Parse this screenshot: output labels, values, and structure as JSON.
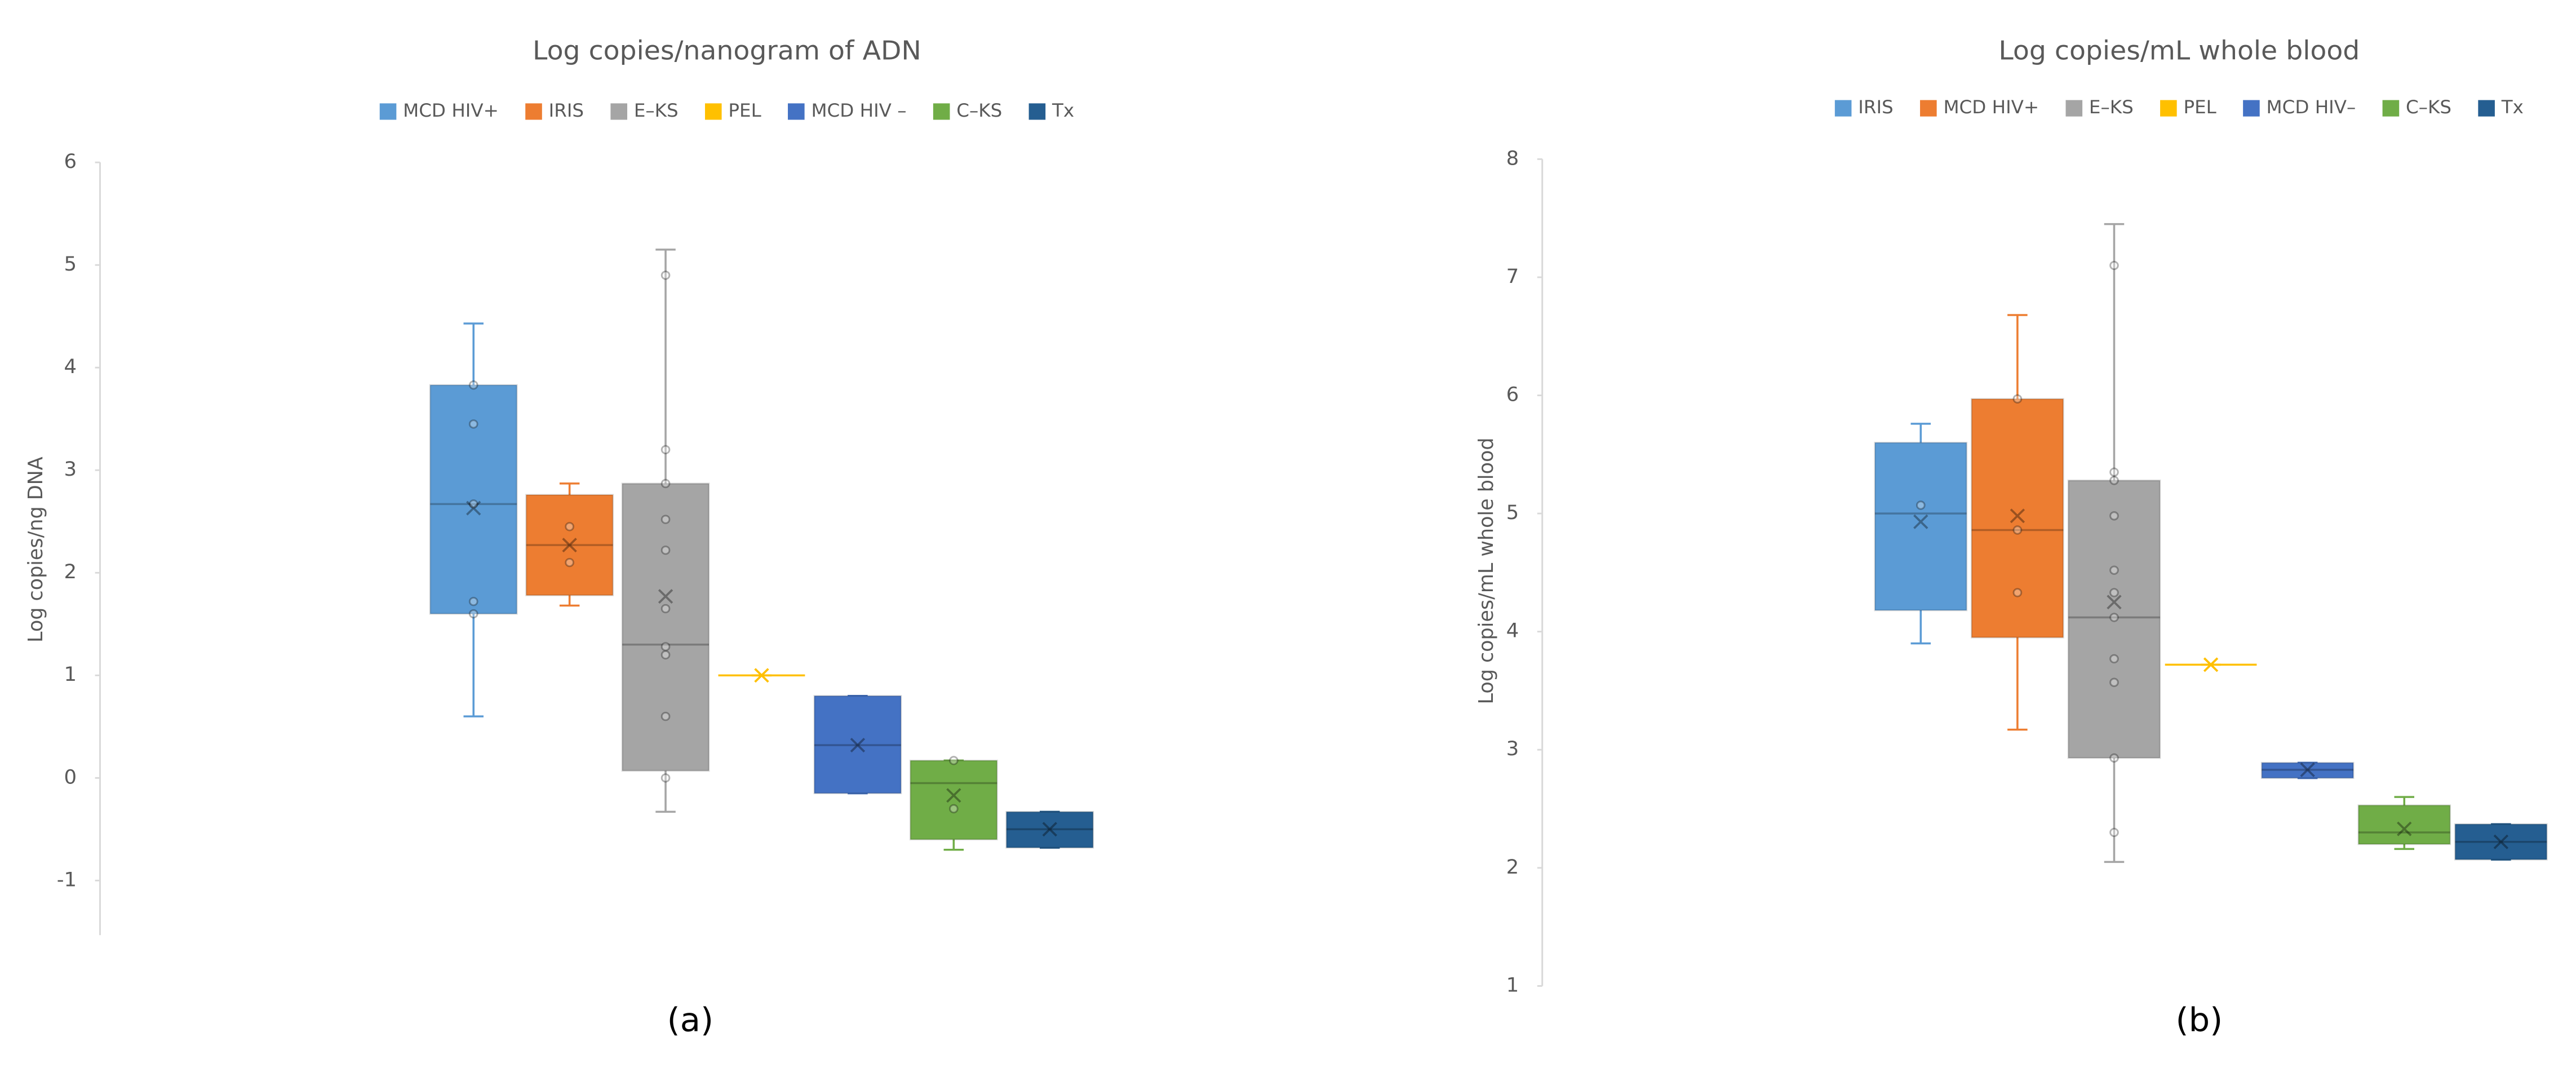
{
  "chart_data": [
    {
      "type": "box",
      "title": "Log copies/nanogram of ADN",
      "y_label": "Log copies/ng DNA",
      "caption": "(a)",
      "ylim": [
        -1.5,
        6
      ],
      "yticks": [
        -1,
        0,
        1,
        2,
        3,
        4,
        5,
        6
      ],
      "series": [
        {
          "name": "MCD HIV+",
          "color": "#5b9bd5",
          "min": 0.6,
          "q1": 1.6,
          "median": 2.67,
          "q3": 3.83,
          "max": 4.43,
          "mean": 2.63,
          "points": [
            1.6,
            1.72,
            2.67,
            3.45,
            3.83
          ]
        },
        {
          "name": "IRIS",
          "color": "#ed7d31",
          "min": 1.68,
          "q1": 1.78,
          "median": 2.27,
          "q3": 2.76,
          "max": 2.87,
          "mean": 2.27,
          "points": [
            2.1,
            2.45
          ]
        },
        {
          "name": "E–KS",
          "color": "#a5a5a5",
          "min": -0.33,
          "q1": 0.07,
          "median": 1.3,
          "q3": 2.87,
          "max": 5.15,
          "mean": 1.77,
          "points": [
            0,
            0.6,
            1.2,
            1.28,
            1.65,
            2.22,
            2.52,
            2.87,
            3.2,
            4.9
          ]
        },
        {
          "name": "PEL",
          "color": "#ffc000",
          "min": 1,
          "q1": 1,
          "median": 1,
          "q3": 1,
          "max": 1,
          "mean": 1,
          "points": []
        },
        {
          "name": "MCD HIV –",
          "color": "#4472c4",
          "min": -0.15,
          "q1": -0.15,
          "median": 0.32,
          "q3": 0.8,
          "max": 0.8,
          "mean": 0.32,
          "points": []
        },
        {
          "name": "C–KS",
          "color": "#70ad47",
          "min": -0.7,
          "q1": -0.6,
          "median": -0.05,
          "q3": 0.17,
          "max": 0.17,
          "mean": -0.17,
          "points": [
            -0.3,
            0.17
          ]
        },
        {
          "name": "Tx",
          "color": "#255e91",
          "min": -0.68,
          "q1": -0.68,
          "median": -0.5,
          "q3": -0.33,
          "max": -0.33,
          "mean": -0.5,
          "points": []
        }
      ]
    },
    {
      "type": "box",
      "title": "Log copies/mL whole blood",
      "y_label": "Log copies/mL whole blood",
      "caption": "(b)",
      "ylim": [
        1,
        8
      ],
      "yticks": [
        1,
        2,
        3,
        4,
        5,
        6,
        7,
        8
      ],
      "series": [
        {
          "name": "IRIS",
          "color": "#5b9bd5",
          "min": 3.9,
          "q1": 4.18,
          "median": 5.0,
          "q3": 5.6,
          "max": 5.76,
          "mean": 4.93,
          "points": [
            5.07
          ]
        },
        {
          "name": "MCD HIV+",
          "color": "#ed7d31",
          "min": 3.17,
          "q1": 3.95,
          "median": 4.86,
          "q3": 5.97,
          "max": 6.68,
          "mean": 4.98,
          "points": [
            4.33,
            4.86,
            5.97
          ]
        },
        {
          "name": "E–KS",
          "color": "#a5a5a5",
          "min": 2.05,
          "q1": 2.93,
          "median": 4.12,
          "q3": 5.28,
          "max": 7.45,
          "mean": 4.25,
          "points": [
            2.3,
            2.93,
            3.57,
            3.77,
            4.12,
            4.33,
            4.52,
            4.98,
            5.28,
            5.35,
            7.1
          ]
        },
        {
          "name": "PEL",
          "color": "#ffc000",
          "min": 3.72,
          "q1": 3.72,
          "median": 3.72,
          "q3": 3.72,
          "max": 3.72,
          "mean": 3.72,
          "points": []
        },
        {
          "name": "MCD HIV–",
          "color": "#4472c4",
          "min": 2.76,
          "q1": 2.76,
          "median": 2.83,
          "q3": 2.89,
          "max": 2.89,
          "mean": 2.83,
          "points": []
        },
        {
          "name": "C–KS",
          "color": "#70ad47",
          "min": 2.16,
          "q1": 2.2,
          "median": 2.3,
          "q3": 2.53,
          "max": 2.6,
          "mean": 2.33,
          "points": []
        },
        {
          "name": "Tx",
          "color": "#255e91",
          "min": 2.07,
          "q1": 2.07,
          "median": 2.22,
          "q3": 2.37,
          "max": 2.37,
          "mean": 2.22,
          "points": []
        }
      ]
    }
  ]
}
